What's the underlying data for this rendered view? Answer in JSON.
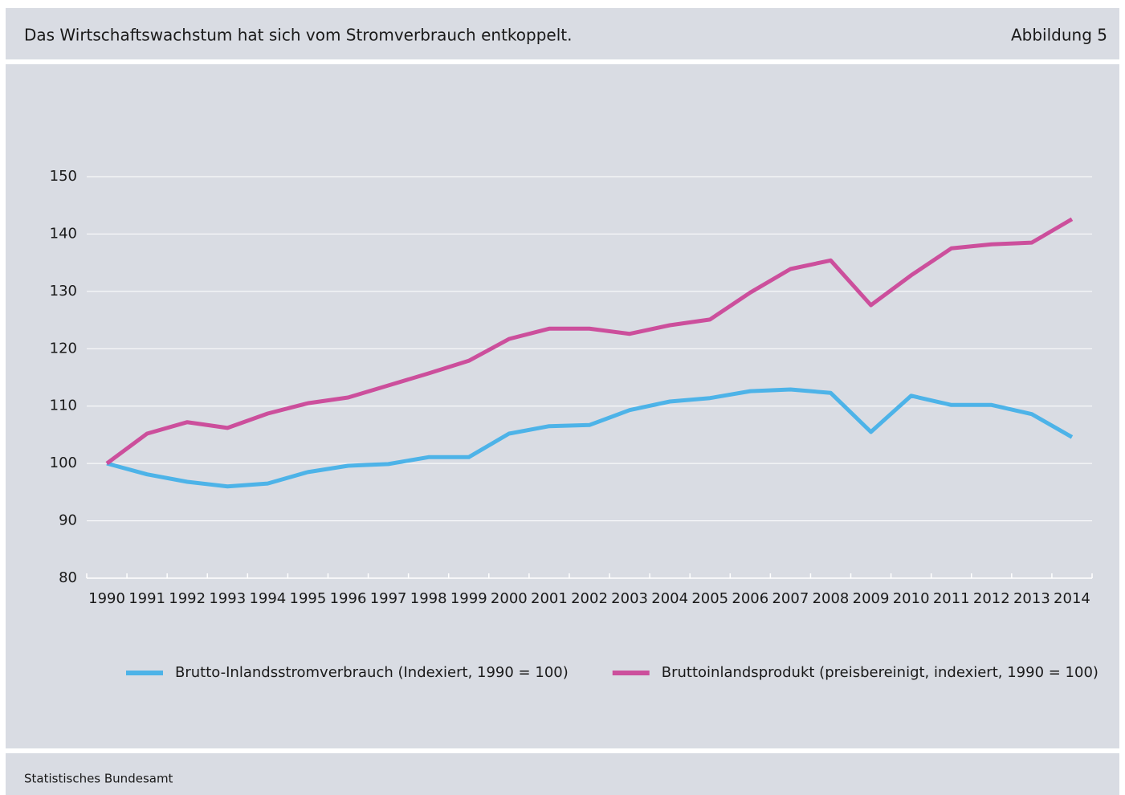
{
  "header": {
    "title": "Das Wirtschaftswachstum hat sich vom Stromverbrauch entkoppelt.",
    "figure": "Abbildung 5"
  },
  "footer": {
    "source": "Statistisches Bundesamt"
  },
  "chart_data": {
    "type": "line",
    "categories": [
      "1990",
      "1991",
      "1992",
      "1993",
      "1994",
      "1995",
      "1996",
      "1997",
      "1998",
      "1999",
      "2000",
      "2001",
      "2002",
      "2003",
      "2004",
      "2005",
      "2006",
      "2007",
      "2008",
      "2009",
      "2010",
      "2011",
      "2012",
      "2013",
      "2014"
    ],
    "series": [
      {
        "name": "Brutto-Inlandsstromverbrauch (Indexiert, 1990 = 100)",
        "color": "#4db3e8",
        "values": [
          100,
          98.1,
          96.8,
          96.0,
          96.5,
          98.5,
          99.6,
          99.9,
          101.1,
          101.1,
          105.2,
          106.5,
          106.7,
          109.3,
          110.8,
          111.4,
          112.6,
          112.9,
          112.3,
          105.5,
          111.8,
          110.2,
          110.2,
          108.6,
          104.6
        ]
      },
      {
        "name": "Bruttoinlandsprodukt (preisbereinigt, indexiert, 1990 = 100)",
        "color": "#cc4f9c",
        "values": [
          100,
          105.2,
          107.2,
          106.2,
          108.7,
          110.5,
          111.5,
          113.6,
          115.7,
          117.9,
          121.7,
          123.5,
          123.5,
          122.6,
          124.1,
          125.1,
          129.8,
          133.9,
          135.4,
          127.6,
          132.8,
          137.5,
          138.2,
          138.5,
          142.6
        ]
      }
    ],
    "ylim": [
      80,
      150
    ],
    "yticks": [
      80,
      90,
      100,
      110,
      120,
      130,
      140,
      150
    ],
    "grid": true,
    "legend": "bottom"
  }
}
